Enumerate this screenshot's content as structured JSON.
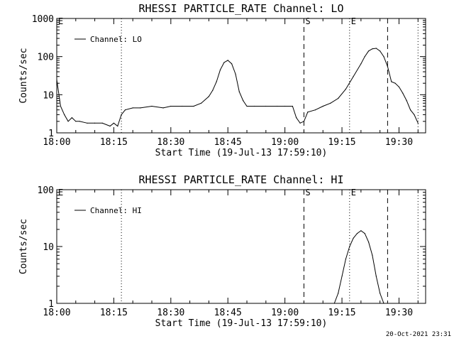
{
  "footer": {
    "timestamp": "20-Oct-2021 23:31"
  },
  "chart_data": [
    {
      "type": "line",
      "title": "RHESSI PARTICLE_RATE Channel: LO",
      "xlabel": "Start Time (19-Jul-13 17:59:10)",
      "ylabel": "Counts/sec",
      "yscale": "log",
      "ylim": [
        1,
        1000
      ],
      "xlim": [
        "18:00",
        "19:37"
      ],
      "xticks": [
        "18:00",
        "18:15",
        "18:30",
        "18:45",
        "19:00",
        "19:15",
        "19:30"
      ],
      "yticks": [
        "1",
        "10",
        "100",
        "1000"
      ],
      "legend": {
        "position": "top-left",
        "entries": [
          "Channel: LO"
        ]
      },
      "markers": [
        {
          "label": "E",
          "time": "18:00",
          "style": "dotted",
          "line": false
        },
        {
          "label": "",
          "time": "18:17",
          "style": "dotted",
          "line": true
        },
        {
          "label": "S",
          "time": "19:05",
          "style": "dashed",
          "line": true
        },
        {
          "label": "E",
          "time": "19:17",
          "style": "dotted",
          "line": true
        },
        {
          "label": "",
          "time": "19:27",
          "style": "dashed",
          "line": true
        },
        {
          "label": "",
          "time": "19:35",
          "style": "dotted",
          "line": true
        }
      ],
      "series": [
        {
          "name": "Channel: LO",
          "x": [
            "18:00",
            "18:01",
            "18:02",
            "18:03",
            "18:04",
            "18:05",
            "18:06",
            "18:08",
            "18:10",
            "18:12",
            "18:14",
            "18:15",
            "18:16",
            "18:17",
            "18:18",
            "18:20",
            "18:22",
            "18:25",
            "18:28",
            "18:30",
            "18:33",
            "18:36",
            "18:38",
            "18:40",
            "18:41",
            "18:42",
            "18:43",
            "18:44",
            "18:45",
            "18:46",
            "18:47",
            "18:48",
            "18:49",
            "18:50",
            "18:52",
            "18:55",
            "18:58",
            "19:00",
            "19:02",
            "19:03",
            "19:04",
            "19:05",
            "19:06",
            "19:08",
            "19:10",
            "19:12",
            "19:14",
            "19:16",
            "19:18",
            "19:20",
            "19:21",
            "19:22",
            "19:23",
            "19:24",
            "19:25",
            "19:26",
            "19:27",
            "19:28",
            "19:29",
            "19:30",
            "19:31",
            "19:32",
            "19:33",
            "19:34",
            "19:35"
          ],
          "values": [
            25,
            5,
            3,
            2,
            2.5,
            2,
            2,
            1.8,
            1.8,
            1.8,
            1.5,
            1.8,
            1.5,
            3,
            4,
            4.5,
            4.5,
            5,
            4.5,
            5,
            5,
            5,
            6,
            9,
            13,
            22,
            45,
            70,
            80,
            65,
            35,
            12,
            7,
            5,
            5,
            5,
            5,
            5,
            5,
            2.5,
            1.8,
            2,
            3.5,
            4,
            5,
            6,
            8,
            14,
            30,
            65,
            100,
            140,
            160,
            165,
            140,
            100,
            55,
            22,
            20,
            16,
            11,
            7,
            4,
            3,
            1.8
          ]
        }
      ]
    },
    {
      "type": "line",
      "title": "RHESSI PARTICLE_RATE Channel: HI",
      "xlabel": "Start Time (19-Jul-13 17:59:10)",
      "ylabel": "Counts/sec",
      "yscale": "log",
      "ylim": [
        1,
        100
      ],
      "xlim": [
        "18:00",
        "19:37"
      ],
      "xticks": [
        "18:00",
        "18:15",
        "18:30",
        "18:45",
        "19:00",
        "19:15",
        "19:30"
      ],
      "yticks": [
        "1",
        "10",
        "100"
      ],
      "legend": {
        "position": "top-left",
        "entries": [
          "Channel: HI"
        ]
      },
      "markers": [
        {
          "label": "E",
          "time": "18:00",
          "style": "dotted",
          "line": false
        },
        {
          "label": "",
          "time": "18:17",
          "style": "dotted",
          "line": true
        },
        {
          "label": "S",
          "time": "19:05",
          "style": "dashed",
          "line": true
        },
        {
          "label": "E",
          "time": "19:17",
          "style": "dotted",
          "line": true
        },
        {
          "label": "",
          "time": "19:27",
          "style": "dashed",
          "line": true
        },
        {
          "label": "",
          "time": "19:35",
          "style": "dotted",
          "line": true
        }
      ],
      "series": [
        {
          "name": "Channel: HI",
          "x": [
            "19:13",
            "19:14",
            "19:15",
            "19:16",
            "19:17",
            "19:18",
            "19:19",
            "19:20",
            "19:21",
            "19:22",
            "19:23",
            "19:24",
            "19:25",
            "19:26"
          ],
          "values": [
            1,
            1.5,
            3,
            6,
            10,
            14,
            17,
            19,
            17,
            12,
            7,
            3,
            1.5,
            1
          ]
        }
      ]
    }
  ]
}
